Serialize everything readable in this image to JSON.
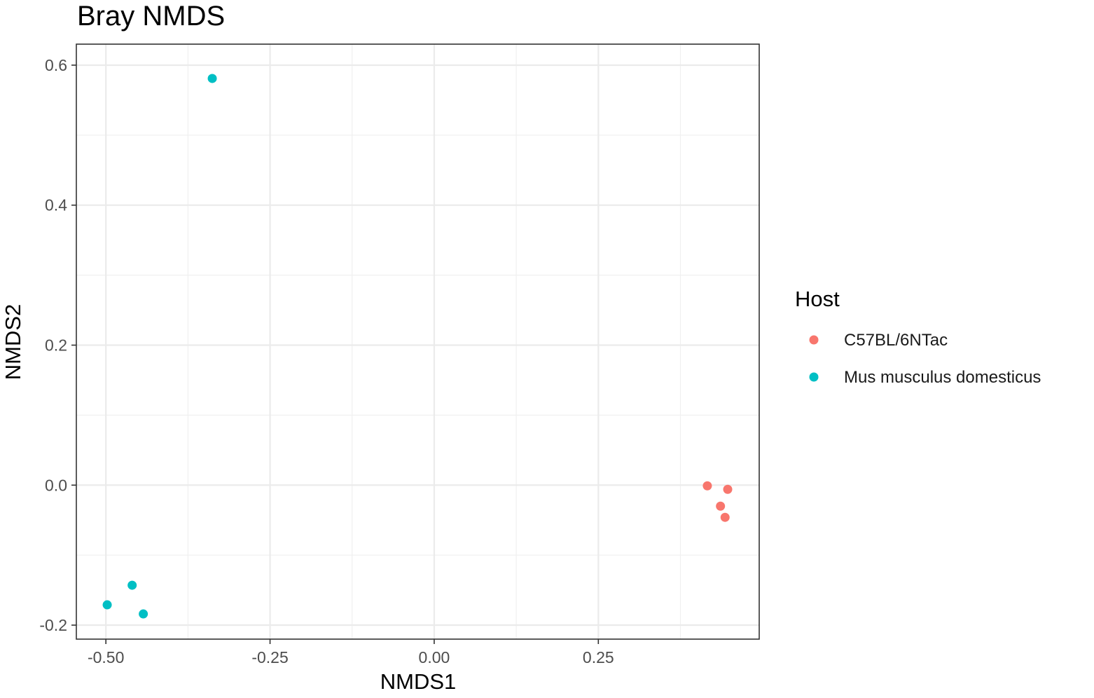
{
  "chart_data": {
    "type": "scatter",
    "title": "Bray NMDS",
    "xlabel": "NMDS1",
    "ylabel": "NMDS2",
    "xlim": [
      -0.545,
      0.495
    ],
    "ylim": [
      -0.22,
      0.63
    ],
    "x_ticks": [
      -0.5,
      -0.25,
      0.0,
      0.25
    ],
    "x_tick_labels": [
      "-0.50",
      "-0.25",
      "0.00",
      "0.25"
    ],
    "y_ticks": [
      -0.2,
      0.0,
      0.2,
      0.4,
      0.6
    ],
    "y_tick_labels": [
      "-0.2",
      "0.0",
      "0.2",
      "0.4",
      "0.6"
    ],
    "grid": true,
    "legend": {
      "title": "Host",
      "position": "right"
    },
    "series": [
      {
        "name": "C57BL/6NTac",
        "color": "#F8766D",
        "points": [
          {
            "x": 0.416,
            "y": -0.001
          },
          {
            "x": 0.447,
            "y": -0.006
          },
          {
            "x": 0.436,
            "y": -0.03
          },
          {
            "x": 0.443,
            "y": -0.046
          }
        ]
      },
      {
        "name": "Mus musculus domesticus",
        "color": "#00BFC4",
        "points": [
          {
            "x": -0.338,
            "y": 0.581
          },
          {
            "x": -0.498,
            "y": -0.171
          },
          {
            "x": -0.46,
            "y": -0.143
          },
          {
            "x": -0.443,
            "y": -0.184
          }
        ]
      }
    ]
  }
}
